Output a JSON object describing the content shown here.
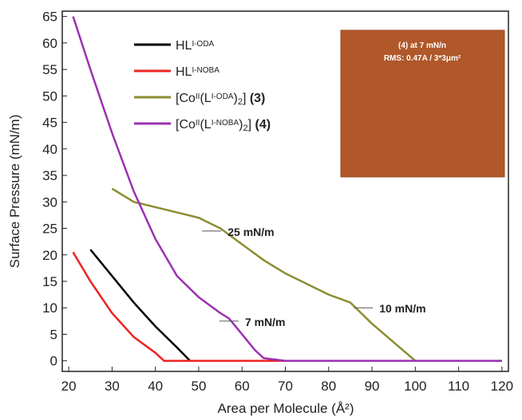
{
  "chart_data": {
    "type": "line",
    "xlabel": "Area per Molecule (Å²)",
    "ylabel": "Surface Pressure (mN/m)",
    "xlim": [
      18.5,
      121.5
    ],
    "ylim": [
      -2,
      66
    ],
    "xticks": [
      20,
      30,
      40,
      50,
      60,
      70,
      80,
      90,
      100,
      110,
      120
    ],
    "yticks": [
      0,
      5,
      10,
      15,
      20,
      25,
      30,
      35,
      40,
      45,
      50,
      55,
      60,
      65
    ],
    "series": [
      {
        "name": [
          {
            "text": "HL"
          },
          {
            "text": "I-ODA",
            "sup": true
          }
        ],
        "color": "#000000",
        "x": [
          25,
          30,
          35,
          40,
          45,
          48,
          120
        ],
        "values": [
          21,
          16,
          11,
          6.5,
          2.5,
          0,
          0
        ]
      },
      {
        "name": [
          {
            "text": "HL"
          },
          {
            "text": "I-NOBA",
            "sup": true
          }
        ],
        "color": "#ee2222",
        "x": [
          21,
          25,
          30,
          35,
          40,
          42,
          120
        ],
        "values": [
          20.5,
          15,
          9,
          4.5,
          1.5,
          0,
          0
        ]
      },
      {
        "name": [
          {
            "text": "[Co"
          },
          {
            "text": "II",
            "sup": true
          },
          {
            "text": "(L"
          },
          {
            "text": "I-ODA",
            "sup": true
          },
          {
            "text": ")"
          },
          {
            "text": "2",
            "sub": true
          },
          {
            "text": "] "
          },
          {
            "text": "(3)",
            "bold": true
          }
        ],
        "color": "#8c8c32",
        "x": [
          30,
          35,
          40,
          45,
          50,
          55,
          60,
          65,
          70,
          75,
          80,
          85,
          90,
          95,
          100,
          120
        ],
        "values": [
          32.5,
          30,
          29,
          28,
          27,
          25,
          22,
          19,
          16.5,
          14.5,
          12.5,
          11,
          7,
          3.5,
          0,
          0
        ]
      },
      {
        "name": [
          {
            "text": "[Co"
          },
          {
            "text": "II",
            "sup": true
          },
          {
            "text": "(L"
          },
          {
            "text": "I-NOBA",
            "sup": true
          },
          {
            "text": ")"
          },
          {
            "text": "2",
            "sub": true
          },
          {
            "text": "] "
          },
          {
            "text": "(4)",
            "bold": true
          }
        ],
        "color": "#9b30b0",
        "x": [
          21,
          25,
          30,
          35,
          40,
          45,
          50,
          55,
          57,
          60,
          63,
          65,
          70,
          120
        ],
        "values": [
          65,
          55,
          43,
          32,
          23,
          16,
          12,
          9,
          8,
          5,
          2,
          0.5,
          0,
          0
        ]
      }
    ],
    "annotations": [
      {
        "text": "25 mN/m",
        "x": 53,
        "y": 24.5
      },
      {
        "text": "10 mN/m",
        "x": 88,
        "y": 10
      },
      {
        "text": "7 mN/m",
        "x": 57,
        "y": 7.5
      }
    ],
    "inset": {
      "title": "(4) at 7 mN/n",
      "text": "RMS:  0.47A / 3*3μm²"
    }
  }
}
